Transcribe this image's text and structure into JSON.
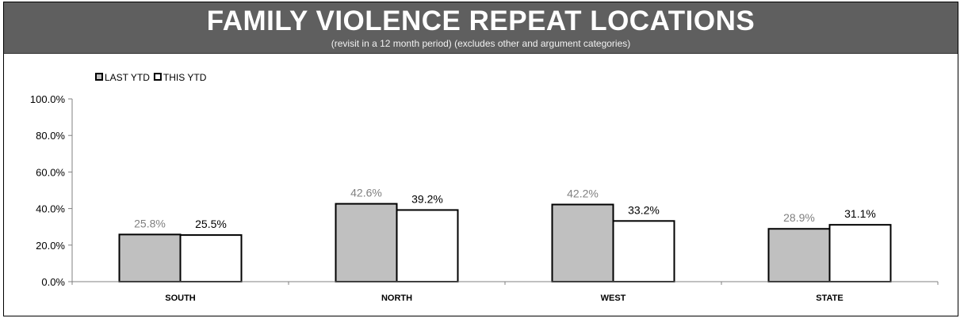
{
  "header": {
    "title": "FAMILY VIOLENCE REPEAT LOCATIONS",
    "subtitle": "(revisit in a 12 month period)  (excludes other and argument  categories)"
  },
  "colors": {
    "header_bg": "#5f5f5f",
    "last_ytd_fill": "#c0c0c0",
    "this_ytd_fill": "#ffffff",
    "last_ytd_label": "#808080",
    "this_ytd_label": "#000000"
  },
  "chart_data": {
    "type": "bar",
    "categories": [
      "SOUTH",
      "NORTH",
      "WEST",
      "STATE"
    ],
    "series": [
      {
        "name": "LAST YTD",
        "values": [
          25.8,
          42.6,
          42.2,
          28.9
        ],
        "labels": [
          "25.8%",
          "42.6%",
          "42.2%",
          "28.9%"
        ]
      },
      {
        "name": "THIS YTD",
        "values": [
          25.5,
          39.2,
          33.2,
          31.1
        ],
        "labels": [
          "25.5%",
          "39.2%",
          "33.2%",
          "31.1%"
        ]
      }
    ],
    "ylim": [
      0,
      100
    ],
    "yticks": [
      "0.0%",
      "20.0%",
      "40.0%",
      "60.0%",
      "80.0%",
      "100.0%"
    ],
    "grid": false,
    "legend": "top-left"
  }
}
